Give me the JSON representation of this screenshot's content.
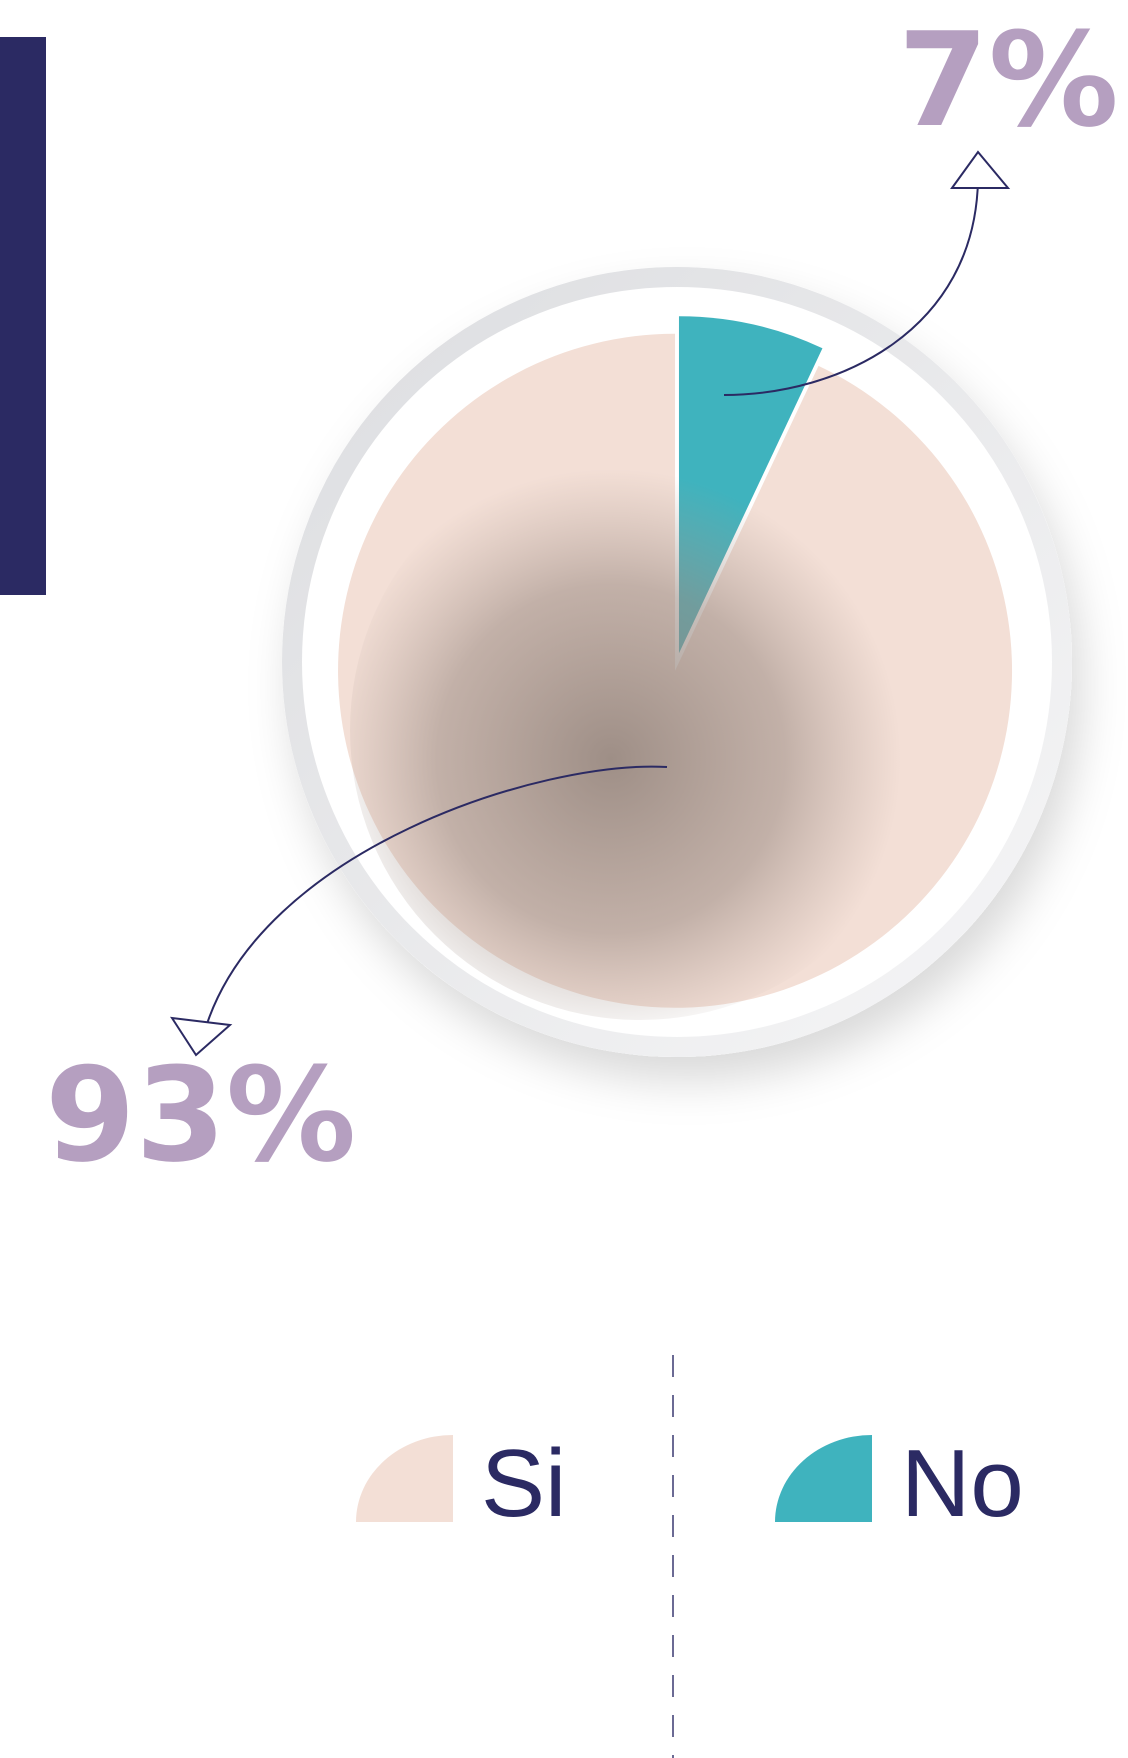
{
  "chart_data": {
    "type": "pie",
    "categories": [
      "Si",
      "No"
    ],
    "values": [
      93,
      7
    ],
    "value_labels": [
      "93%",
      "7%"
    ],
    "colors": [
      "#f3dfd6",
      "#3fb3be"
    ]
  }
}
